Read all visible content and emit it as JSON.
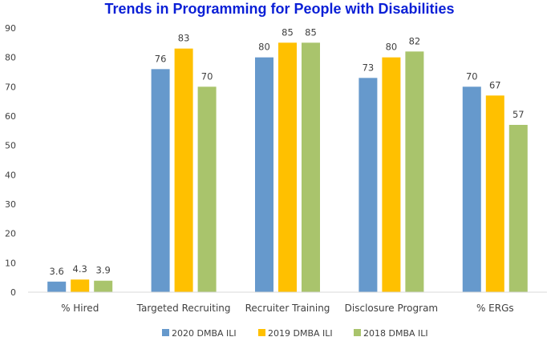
{
  "chart_data": {
    "type": "bar",
    "title": "Trends in Programming for People with Disabilities",
    "categories": [
      "% Hired",
      "Targeted Recruiting",
      "Recruiter Training",
      "Disclosure Program",
      "% ERGs"
    ],
    "series": [
      {
        "name": "2020 DMBA ILI",
        "color": "#6699cc",
        "values": [
          3.6,
          76,
          80,
          73,
          70
        ]
      },
      {
        "name": "2019 DMBA ILI",
        "color": "#ffc000",
        "values": [
          4.3,
          83,
          85,
          80,
          67
        ]
      },
      {
        "name": "2018 DMBA ILI",
        "color": "#a9c46c",
        "values": [
          3.9,
          70,
          85,
          82,
          57
        ]
      }
    ],
    "ylim": [
      0,
      90
    ],
    "yticks": [
      0,
      10,
      20,
      30,
      40,
      50,
      60,
      70,
      80,
      90
    ],
    "xlabel": "",
    "ylabel": "",
    "legend_position": "bottom",
    "grid": false
  }
}
